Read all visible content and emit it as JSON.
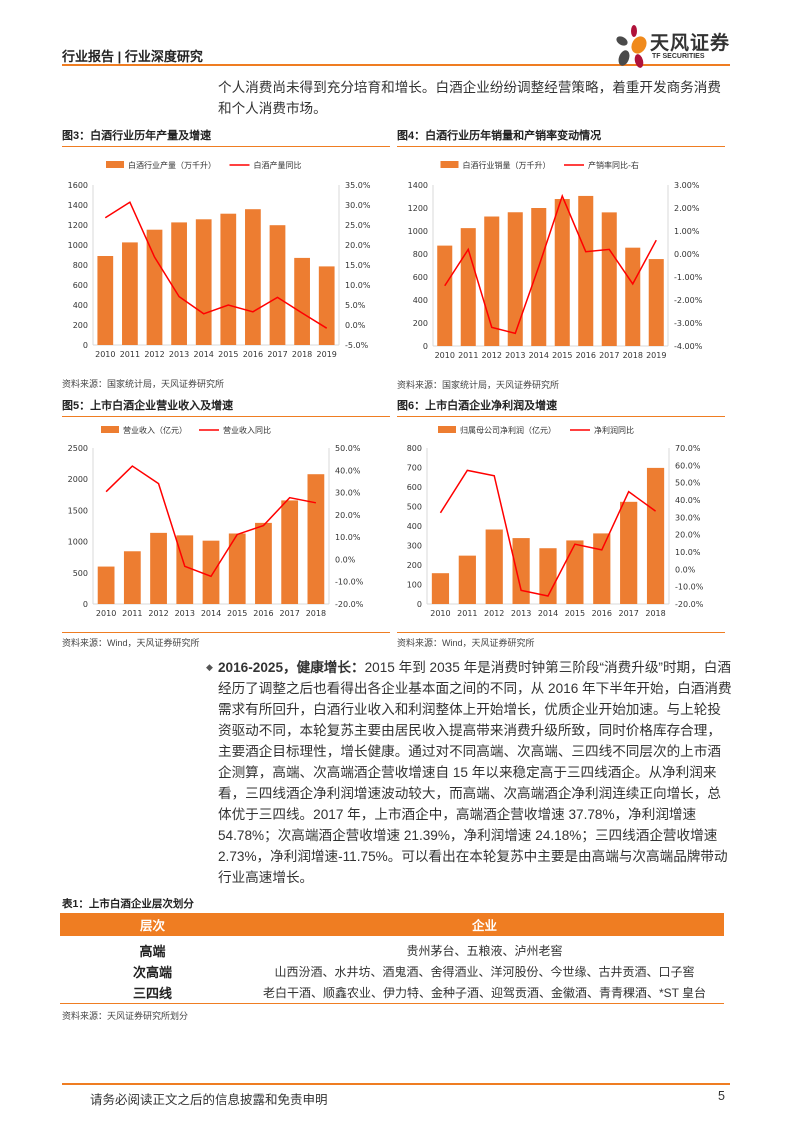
{
  "header": {
    "title": "行业报告 | 行业深度研究",
    "logo_cn": "天风证券",
    "logo_en": "TF SECURITIES"
  },
  "top_paragraph": "个人消费尚未得到充分培育和增长。白酒企业纷纷调整经营策略，着重开发商务消费和个人消费市场。",
  "colors": {
    "accent": "#ef7d22",
    "bar": "#ed7d31",
    "line": "#ff0000",
    "logo_orange": "#f08a1c",
    "logo_red": "#b0123a",
    "logo_gray": "#4a4a4a"
  },
  "chart_data": [
    {
      "type": "bar+line",
      "title": "图3：白酒行业历年产量及增速",
      "categories": [
        "2010",
        "2011",
        "2012",
        "2013",
        "2014",
        "2015",
        "2016",
        "2017",
        "2018",
        "2019"
      ],
      "series": [
        {
          "name": "白酒行业产量（万千升）",
          "type": "bar",
          "axis": "left",
          "values": [
            890,
            1026,
            1153,
            1226,
            1257,
            1313,
            1358,
            1198,
            871,
            786
          ]
        },
        {
          "name": "白酒产量同比",
          "type": "line",
          "axis": "right",
          "values": [
            26.8,
            30.7,
            17.0,
            7.1,
            2.8,
            5.0,
            3.3,
            6.9,
            3.0,
            -0.8
          ]
        }
      ],
      "yleft": {
        "range": [
          0,
          1600
        ],
        "ticks": [
          "0",
          "200",
          "400",
          "600",
          "800",
          "1000",
          "1200",
          "1400",
          "1600"
        ]
      },
      "yright": {
        "range": [
          -5,
          35
        ],
        "ticks": [
          "-5.0%",
          "0.0%",
          "5.0%",
          "10.0%",
          "15.0%",
          "20.0%",
          "25.0%",
          "30.0%",
          "35.0%"
        ]
      },
      "legend": "top",
      "source": "资料来源：国家统计局，天风证券研究所"
    },
    {
      "type": "bar+line",
      "title": "图4：白酒行业历年销量和产销率变动情况",
      "categories": [
        "2010",
        "2011",
        "2012",
        "2013",
        "2014",
        "2015",
        "2016",
        "2017",
        "2018",
        "2019"
      ],
      "series": [
        {
          "name": "白酒行业销量（万千升）",
          "type": "bar",
          "axis": "left",
          "values": [
            873,
            1025,
            1126,
            1163,
            1200,
            1278,
            1305,
            1162,
            855,
            756
          ]
        },
        {
          "name": "产销率同比-右",
          "type": "line",
          "axis": "right",
          "values": [
            -1.38,
            0.2,
            -3.19,
            -3.45,
            -0.55,
            2.52,
            0.1,
            0.2,
            -1.3,
            0.6
          ]
        }
      ],
      "yleft": {
        "range": [
          0,
          1400
        ],
        "ticks": [
          "0",
          "200",
          "400",
          "600",
          "800",
          "1000",
          "1200",
          "1400"
        ]
      },
      "yright": {
        "range": [
          -4,
          3
        ],
        "ticks": [
          "-4.00%",
          "-3.00%",
          "-2.00%",
          "-1.00%",
          "0.00%",
          "1.00%",
          "2.00%",
          "3.00%"
        ]
      },
      "legend": "top",
      "source": "资料来源：国家统计局，天风证券研究所"
    },
    {
      "type": "bar+line",
      "title": "图5：上市白酒企业营业收入及增速",
      "categories": [
        "2010",
        "2011",
        "2012",
        "2013",
        "2014",
        "2015",
        "2016",
        "2017",
        "2018"
      ],
      "series": [
        {
          "name": "营业收入（亿元）",
          "type": "bar",
          "axis": "left",
          "values": [
            600,
            845,
            1140,
            1100,
            1015,
            1130,
            1300,
            1660,
            2080
          ]
        },
        {
          "name": "营业收入同比",
          "type": "line",
          "axis": "right",
          "values": [
            30.4,
            41.9,
            34.0,
            -3.1,
            -7.6,
            11.2,
            15.2,
            27.7,
            25.4
          ]
        }
      ],
      "yleft": {
        "range": [
          0,
          2500
        ],
        "ticks": [
          "0",
          "500",
          "1000",
          "1500",
          "2000",
          "2500"
        ]
      },
      "yright": {
        "range": [
          -20,
          50
        ],
        "ticks": [
          "-20.0%",
          "-10.0%",
          "0.0%",
          "10.0%",
          "20.0%",
          "30.0%",
          "40.0%",
          "50.0%"
        ]
      },
      "legend": "top",
      "source": "资料来源：Wind，天风证券研究所"
    },
    {
      "type": "bar+line",
      "title": "图6：上市白酒企业净利润及增速",
      "categories": [
        "2010",
        "2011",
        "2012",
        "2013",
        "2014",
        "2015",
        "2016",
        "2017",
        "2018"
      ],
      "series": [
        {
          "name": "归属母公司净利润（亿元）",
          "type": "bar",
          "axis": "left",
          "values": [
            158,
            248,
            382,
            338,
            286,
            326,
            362,
            524,
            698
          ]
        },
        {
          "name": "净利润同比",
          "type": "line",
          "axis": "right",
          "values": [
            32.6,
            57.1,
            54.0,
            -12.1,
            -15.4,
            14.5,
            11.2,
            44.8,
            33.6
          ]
        }
      ],
      "yleft": {
        "range": [
          0,
          800
        ],
        "ticks": [
          "0",
          "100",
          "200",
          "300",
          "400",
          "500",
          "600",
          "700",
          "800"
        ]
      },
      "yright": {
        "range": [
          -20,
          70
        ],
        "ticks": [
          "-20.0%",
          "-10.0%",
          "0.0%",
          "10.0%",
          "20.0%",
          "30.0%",
          "40.0%",
          "50.0%",
          "60.0%",
          "70.0%"
        ]
      },
      "legend": "top",
      "source": "资料来源：Wind，天风证券研究所"
    }
  ],
  "body": {
    "bullet": "◆",
    "lead": "2016-2025，健康增长：",
    "text": "2015 年到 2035 年是消费时钟第三阶段“消费升级”时期，白酒经历了调整之后也看得出各企业基本面之间的不同，从 2016 年下半年开始，白酒消费需求有所回升，白酒行业收入和利润整体上开始增长，优质企业开始加速。与上轮投资驱动不同，本轮复苏主要由居民收入提高带来消费升级所致，同时价格库存合理，主要酒企目标理性，增长健康。通过对不同高端、次高端、三四线不同层次的上市酒企测算，高端、次高端酒企营收增速自 15 年以来稳定高于三四线酒企。从净利润来看，三四线酒企净利润增速波动较大，而高端、次高端酒企净利润连续正向增长，总体优于三四线。2017 年，上市酒企中，高端酒企营收增速 37.78%，净利润增速 54.78%；次高端酒企营收增速 21.39%，净利润增速 24.18%；三四线酒企营收增速 2.73%，净利润增速-11.75%。可以看出在本轮复苏中主要是由高端与次高端品牌带动行业高速增长。"
  },
  "table": {
    "title": "表1：上市白酒企业层次划分",
    "headers": [
      "层次",
      "企业"
    ],
    "rows": [
      [
        "高端",
        "贵州茅台、五粮液、泸州老窖"
      ],
      [
        "次高端",
        "山西汾酒、水井坊、酒鬼酒、舍得酒业、洋河股份、今世缘、古井贡酒、口子窖"
      ],
      [
        "三四线",
        "老白干酒、顺鑫农业、伊力特、金种子酒、迎驾贡酒、金徽酒、青青稞酒、*ST 皇台"
      ]
    ],
    "source": "资料来源：天风证券研究所划分"
  },
  "footer": {
    "disclaimer": "请务必阅读正文之后的信息披露和免责申明",
    "page": "5"
  }
}
